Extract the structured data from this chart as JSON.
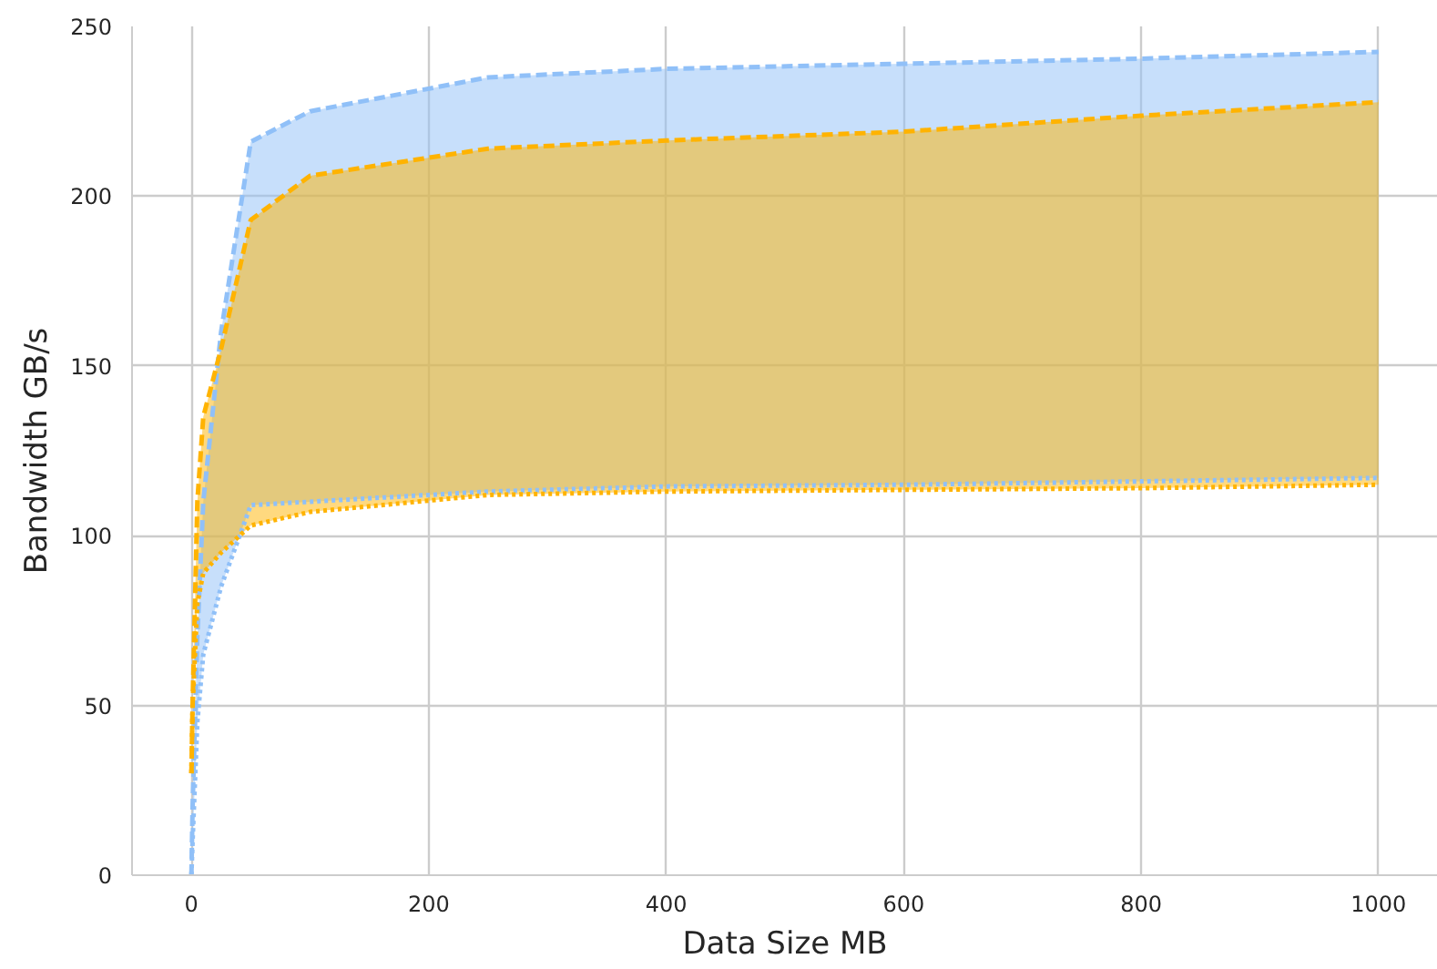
{
  "chart_data": {
    "type": "line",
    "xlabel": "Data Size MB",
    "ylabel": "Bandwidth GB/s",
    "xlim": [
      -50,
      1050
    ],
    "ylim": [
      0,
      250
    ],
    "xticks": [
      0,
      200,
      400,
      600,
      800,
      1000
    ],
    "yticks": [
      0,
      50,
      100,
      150,
      200,
      250
    ],
    "grid": true,
    "x": [
      0,
      1,
      5,
      10,
      25,
      50,
      100,
      250,
      400,
      600,
      800,
      1000
    ],
    "series": [
      {
        "color": "#90c0f8",
        "line_style": "dashed",
        "values": [
          0,
          20,
          70,
          110,
          160,
          216,
          225,
          235,
          237.5,
          239,
          240.5,
          242.5
        ],
        "upper": [
          0,
          20,
          70,
          110,
          160,
          216,
          225,
          235,
          237.5,
          239,
          240.5,
          242.5
        ],
        "lower": [
          0,
          10,
          45,
          65,
          85,
          109,
          110,
          113,
          114.5,
          115,
          116,
          117
        ]
      },
      {
        "color": "#90c0f8",
        "line_style": "dotted",
        "values": [
          0,
          10,
          45,
          65,
          85,
          109,
          110,
          113,
          114.5,
          115,
          116,
          117
        ]
      },
      {
        "color": "#ffb300",
        "line_style": "dashed",
        "values": [
          30,
          50,
          110,
          135,
          155,
          193,
          206,
          214,
          216.4,
          219,
          223.7,
          227.7
        ],
        "upper": [
          30,
          50,
          110,
          135,
          155,
          193,
          206,
          214,
          216.4,
          219,
          223.7,
          227.7
        ],
        "lower": [
          30,
          50,
          80,
          89,
          95,
          103,
          107,
          112,
          113,
          113.5,
          114,
          115
        ]
      },
      {
        "color": "#ffb300",
        "line_style": "dotted",
        "values": [
          30,
          50,
          80,
          89,
          95,
          103,
          107,
          112,
          113,
          113.5,
          114,
          115
        ]
      }
    ]
  }
}
